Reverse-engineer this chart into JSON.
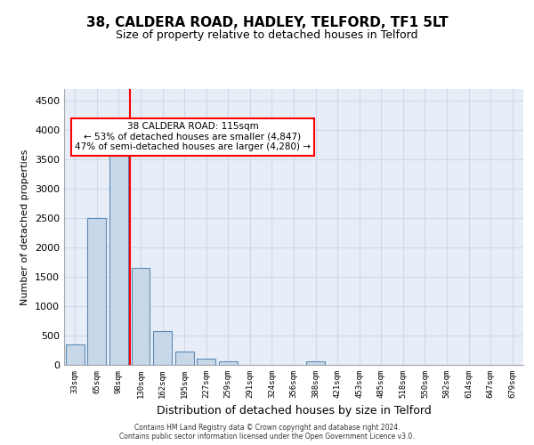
{
  "title": "38, CALDERA ROAD, HADLEY, TELFORD, TF1 5LT",
  "subtitle": "Size of property relative to detached houses in Telford",
  "xlabel": "Distribution of detached houses by size in Telford",
  "ylabel": "Number of detached properties",
  "categories": [
    "33sqm",
    "65sqm",
    "98sqm",
    "130sqm",
    "162sqm",
    "195sqm",
    "227sqm",
    "259sqm",
    "291sqm",
    "324sqm",
    "356sqm",
    "388sqm",
    "421sqm",
    "453sqm",
    "485sqm",
    "518sqm",
    "550sqm",
    "582sqm",
    "614sqm",
    "647sqm",
    "679sqm"
  ],
  "values": [
    350,
    2500,
    3750,
    1650,
    575,
    225,
    100,
    60,
    5,
    0,
    0,
    60,
    0,
    0,
    0,
    0,
    0,
    0,
    0,
    0,
    0
  ],
  "bar_color": "#c8d8e8",
  "bar_edge_color": "#5b8ab5",
  "vline_x": 2.7,
  "vline_color": "red",
  "ylim": [
    0,
    4700
  ],
  "yticks": [
    0,
    500,
    1000,
    1500,
    2000,
    2500,
    3000,
    3500,
    4000,
    4500
  ],
  "annotation_text": "38 CALDERA ROAD: 115sqm\n← 53% of detached houses are smaller (4,847)\n47% of semi-detached houses are larger (4,280) →",
  "annotation_box_color": "white",
  "annotation_box_edge": "red",
  "footer": "Contains HM Land Registry data © Crown copyright and database right 2024.\nContains public sector information licensed under the Open Government Licence v3.0.",
  "grid_color": "#d0d8e8",
  "bg_color": "#e8eef8"
}
